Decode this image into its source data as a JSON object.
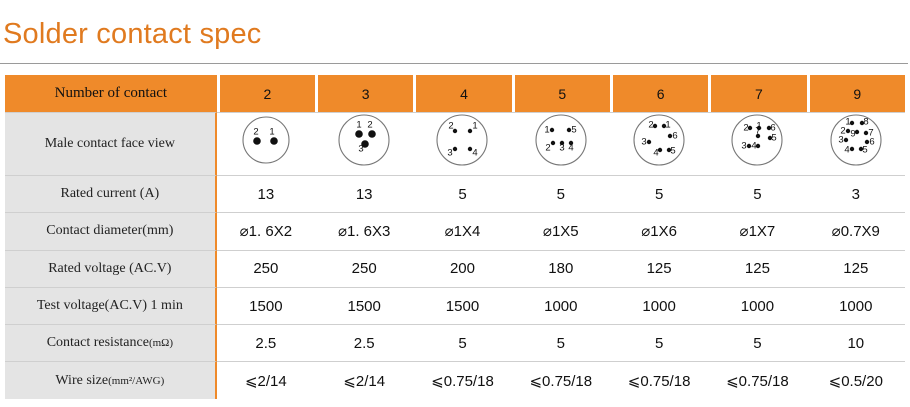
{
  "title": "Solder contact spec",
  "header": {
    "label": "Number of contact",
    "contacts": [
      "2",
      "3",
      "4",
      "5",
      "6",
      "7",
      "9"
    ]
  },
  "face_row_label": "Male contact face view",
  "faces": [
    {
      "pins": [
        {
          "n": "2"
        },
        {
          "n": "1"
        }
      ]
    },
    {
      "pins": [
        {
          "n": "1"
        },
        {
          "n": "2"
        },
        {
          "n": "3"
        }
      ]
    },
    {
      "pins": [
        {
          "n": "2"
        },
        {
          "n": "1"
        },
        {
          "n": "3"
        },
        {
          "n": "4"
        }
      ]
    },
    {
      "pins": [
        {
          "n": "1"
        },
        {
          "n": "5"
        },
        {
          "n": "2"
        },
        {
          "n": "3"
        },
        {
          "n": "4"
        }
      ]
    },
    {
      "pins": [
        {
          "n": "2"
        },
        {
          "n": "1"
        },
        {
          "n": "6"
        },
        {
          "n": "3"
        },
        {
          "n": "4"
        },
        {
          "n": "5"
        }
      ]
    },
    {
      "pins": [
        {
          "n": "2"
        },
        {
          "n": "1"
        },
        {
          "n": "7"
        },
        {
          "n": "6"
        },
        {
          "n": "5"
        },
        {
          "n": "3"
        },
        {
          "n": "4"
        }
      ]
    },
    {
      "pins": [
        {
          "n": "1"
        },
        {
          "n": "8"
        },
        {
          "n": "2"
        },
        {
          "n": "9"
        },
        {
          "n": "7"
        },
        {
          "n": "3"
        },
        {
          "n": "6"
        },
        {
          "n": "4"
        },
        {
          "n": "5"
        }
      ]
    }
  ],
  "rows": [
    {
      "label_main": "Rated current (A)",
      "label_small": "",
      "label_tail": "",
      "values": [
        "13",
        "13",
        "5",
        "5",
        "5",
        "5",
        "3"
      ]
    },
    {
      "label_main": "Contact diameter(mm)",
      "label_small": "",
      "label_tail": "",
      "values": [
        "⌀1. 6X2",
        "⌀1. 6X3",
        "⌀1X4",
        "⌀1X5",
        "⌀1X6",
        "⌀1X7",
        "⌀0.7X9"
      ]
    },
    {
      "label_main": "Rated voltage (AC.V)",
      "label_small": "",
      "label_tail": "",
      "values": [
        "250",
        "250",
        "200",
        "180",
        "125",
        "125",
        "125"
      ]
    },
    {
      "label_main": "Test voltage(AC.V) 1 min",
      "label_small": "",
      "label_tail": "",
      "values": [
        "1500",
        "1500",
        "1500",
        "1000",
        "1000",
        "1000",
        "1000"
      ]
    },
    {
      "label_main": "Contact resistance",
      "label_small": "(mΩ)",
      "label_tail": "",
      "values": [
        "2.5",
        "2.5",
        "5",
        "5",
        "5",
        "5",
        "10"
      ]
    },
    {
      "label_main": "Wire size",
      "label_small": "(mm²/AWG)",
      "label_tail": "",
      "values": [
        "⩽2/14",
        "⩽2/14",
        "⩽0.75/18",
        "⩽0.75/18",
        "⩽0.75/18",
        "⩽0.75/18",
        "⩽0.5/20"
      ]
    }
  ]
}
